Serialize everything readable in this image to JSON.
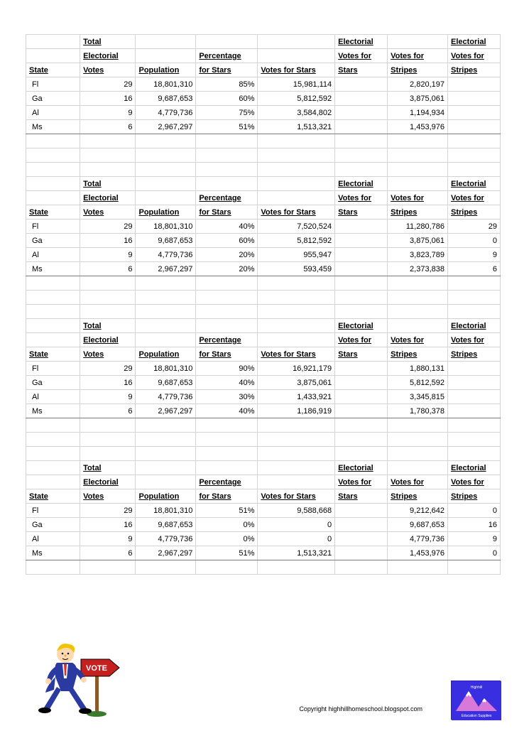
{
  "columns": [
    "State",
    "Total Electorial Votes",
    "Population",
    "Percentage for Stars",
    "Votes for Stars",
    "Electorial Votes for Stars",
    "Votes for Stripes",
    "Electorial Votes for Stripes"
  ],
  "blocks": [
    {
      "rows": [
        {
          "state": "Fl",
          "tev": "29",
          "pop": "18,801,310",
          "pct": "85%",
          "vfs": "15,981,114",
          "evs": "",
          "vfstr": "2,820,197",
          "evstr": ""
        },
        {
          "state": "Ga",
          "tev": "16",
          "pop": "9,687,653",
          "pct": "60%",
          "vfs": "5,812,592",
          "evs": "",
          "vfstr": "3,875,061",
          "evstr": ""
        },
        {
          "state": "Al",
          "tev": "9",
          "pop": "4,779,736",
          "pct": "75%",
          "vfs": "3,584,802",
          "evs": "",
          "vfstr": "1,194,934",
          "evstr": ""
        },
        {
          "state": "Ms",
          "tev": "6",
          "pop": "2,967,297",
          "pct": "51%",
          "vfs": "1,513,321",
          "evs": "",
          "vfstr": "1,453,976",
          "evstr": ""
        }
      ]
    },
    {
      "rows": [
        {
          "state": "Fl",
          "tev": "29",
          "pop": "18,801,310",
          "pct": "40%",
          "vfs": "7,520,524",
          "evs": "",
          "vfstr": "11,280,786",
          "evstr": "29"
        },
        {
          "state": "Ga",
          "tev": "16",
          "pop": "9,687,653",
          "pct": "60%",
          "vfs": "5,812,592",
          "evs": "",
          "vfstr": "3,875,061",
          "evstr": "0"
        },
        {
          "state": "Al",
          "tev": "9",
          "pop": "4,779,736",
          "pct": "20%",
          "vfs": "955,947",
          "evs": "",
          "vfstr": "3,823,789",
          "evstr": "9"
        },
        {
          "state": "Ms",
          "tev": "6",
          "pop": "2,967,297",
          "pct": "20%",
          "vfs": "593,459",
          "evs": "",
          "vfstr": "2,373,838",
          "evstr": "6"
        }
      ]
    },
    {
      "rows": [
        {
          "state": "Fl",
          "tev": "29",
          "pop": "18,801,310",
          "pct": "90%",
          "vfs": "16,921,179",
          "evs": "",
          "vfstr": "1,880,131",
          "evstr": ""
        },
        {
          "state": "Ga",
          "tev": "16",
          "pop": "9,687,653",
          "pct": "40%",
          "vfs": "3,875,061",
          "evs": "",
          "vfstr": "5,812,592",
          "evstr": ""
        },
        {
          "state": "Al",
          "tev": "9",
          "pop": "4,779,736",
          "pct": "30%",
          "vfs": "1,433,921",
          "evs": "",
          "vfstr": "3,345,815",
          "evstr": ""
        },
        {
          "state": "Ms",
          "tev": "6",
          "pop": "2,967,297",
          "pct": "40%",
          "vfs": "1,186,919",
          "evs": "",
          "vfstr": "1,780,378",
          "evstr": ""
        }
      ]
    },
    {
      "rows": [
        {
          "state": "Fl",
          "tev": "29",
          "pop": "18,801,310",
          "pct": "51%",
          "vfs": "9,588,668",
          "evs": "",
          "vfstr": "9,212,642",
          "evstr": "0"
        },
        {
          "state": "Ga",
          "tev": "16",
          "pop": "9,687,653",
          "pct": "0%",
          "vfs": "0",
          "evs": "",
          "vfstr": "9,687,653",
          "evstr": "16"
        },
        {
          "state": "Al",
          "tev": "9",
          "pop": "4,779,736",
          "pct": "0%",
          "vfs": "0",
          "evs": "",
          "vfstr": "4,779,736",
          "evstr": "9"
        },
        {
          "state": "Ms",
          "tev": "6",
          "pop": "2,967,297",
          "pct": "51%",
          "vfs": "1,513,321",
          "evs": "",
          "vfstr": "1,453,976",
          "evstr": "0"
        }
      ]
    }
  ],
  "copyright": "Copyright highhillhomeschool.blogspot.com",
  "logo_text_top": "Highhill",
  "logo_text_bottom": "Education Supplies",
  "vote_sign": "VOTE",
  "colors": {
    "grid": "#d3d3d3",
    "block_sep": "#7a7a7a",
    "logo_bg": "#3a2fe0",
    "mountain_fill": "#d878d8",
    "mountain_snow": "#ffffff",
    "sign_red": "#c4201f",
    "sign_post": "#8a5a2a",
    "suit_blue": "#2a3aa0",
    "hair": "#f2c400",
    "skin": "#ffd9b0",
    "tie": "#d23030",
    "shirt": "#ffffff",
    "shoe": "#000000"
  }
}
